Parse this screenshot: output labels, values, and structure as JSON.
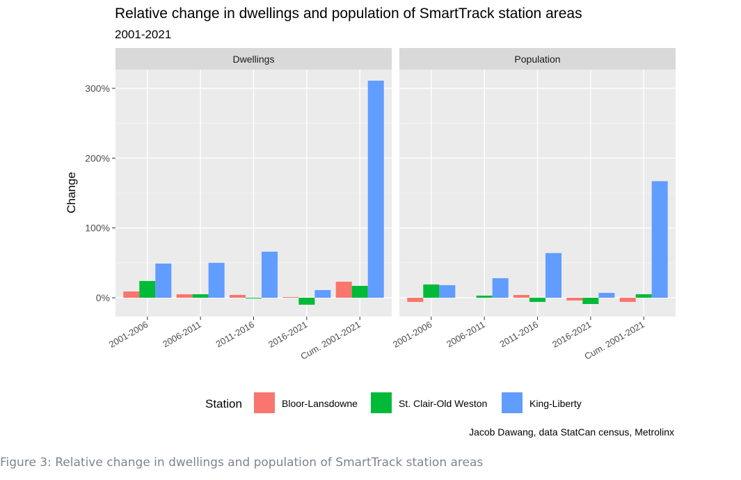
{
  "chart_data": {
    "type": "bar",
    "title": "Relative change in dwellings and population of SmartTrack station areas",
    "subtitle": "2001-2021",
    "xlabel": "",
    "ylabel": "Change",
    "ylim": [
      -25,
      330
    ],
    "y_ticks": [
      0,
      100,
      200,
      300
    ],
    "y_tick_labels": [
      "0%",
      "100%",
      "200%",
      "300%"
    ],
    "categories": [
      "2001-2006",
      "2006-2011",
      "2011-2016",
      "2016-2021",
      "Cum. 2001-2021"
    ],
    "legend_title": "Station",
    "legend_position": "bottom",
    "grid": true,
    "caption": "Jacob Dawang, data StatCan census, Metrolinx",
    "series_colors": {
      "Bloor-Lansdowne": "#F8766D",
      "St. Clair-Old Weston": "#00BA38",
      "King-Liberty": "#619CFF"
    },
    "panels": [
      {
        "name": "Dwellings",
        "series": [
          {
            "name": "Bloor-Lansdowne",
            "values": [
              9,
              5,
              4,
              1,
              23
            ]
          },
          {
            "name": "St. Clair-Old Weston",
            "values": [
              24,
              5,
              -1,
              -10,
              17
            ]
          },
          {
            "name": "King-Liberty",
            "values": [
              49,
              50,
              66,
              11,
              311
            ]
          }
        ]
      },
      {
        "name": "Population",
        "series": [
          {
            "name": "Bloor-Lansdowne",
            "values": [
              -6,
              0,
              4,
              -4,
              -6
            ]
          },
          {
            "name": "St. Clair-Old Weston",
            "values": [
              19,
              3,
              -6,
              -9,
              5
            ]
          },
          {
            "name": "King-Liberty",
            "values": [
              18,
              28,
              64,
              7,
              167
            ]
          }
        ]
      }
    ]
  },
  "figure_caption": "Figure 3: Relative change in dwellings and population of SmartTrack station areas"
}
